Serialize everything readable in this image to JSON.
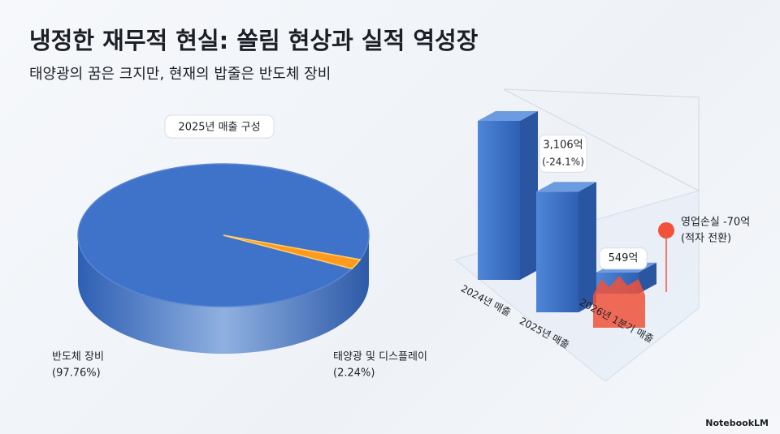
{
  "title": "냉정한 재무적 현실: 쏠림 현상과 실적 역성장",
  "subtitle": "태양광의 꿈은 크지만, 현재의 밥줄은 반도체 장비",
  "footer": "NotebookLM",
  "chart_data": [
    {
      "type": "pie",
      "title": "2025년 매출 구성",
      "categories": [
        "반도체 장비",
        "태양광 및 디스플레이"
      ],
      "values": [
        97.76,
        2.24
      ],
      "value_labels": [
        "(97.76%)",
        "(2.24%)"
      ],
      "colors": [
        "#3f73c9",
        "#ff9a1f"
      ]
    },
    {
      "type": "bar",
      "categories": [
        "2024년 매출",
        "2025년 매출",
        "2026년 1분기 매출"
      ],
      "values": [
        4092,
        3106,
        549
      ],
      "value_labels": [
        null,
        "3,106억",
        "549억"
      ],
      "change_label": "(-24.1%)",
      "loss_labels": [
        "영업손실 -70억",
        "(적자 전환)"
      ],
      "color": "#3f73c9",
      "loss_color": "#f0523a"
    }
  ]
}
